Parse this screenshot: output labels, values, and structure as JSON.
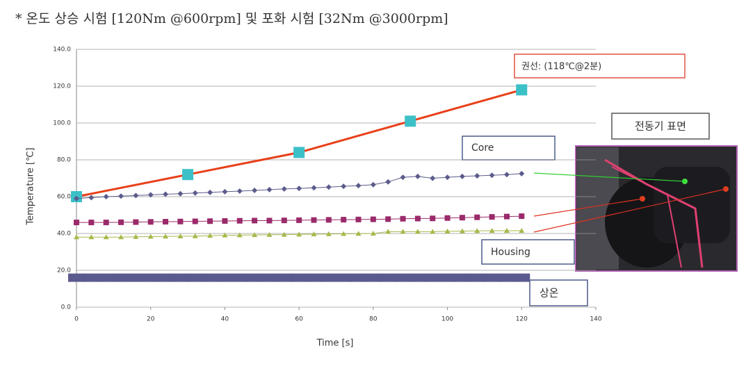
{
  "chart_data": {
    "type": "line",
    "title": "* 온도 상승 시험 [120Nm @600rpm] 및 포화 시험 [32Nm @3000rpm]",
    "xlabel": "Time [s]",
    "ylabel": "Temperature [℃]",
    "annotation": "전동기 표면",
    "xlim": [
      0,
      140
    ],
    "xticks": [
      0,
      20,
      40,
      60,
      80,
      100,
      120,
      140
    ],
    "ylim": [
      0,
      140
    ],
    "yticks": [
      {
        "value": 0,
        "label": "0.0"
      },
      {
        "value": 20,
        "label": "20.0"
      },
      {
        "value": 40,
        "label": "40.0"
      },
      {
        "value": 60,
        "label": "60.0"
      },
      {
        "value": 80,
        "label": "80.0"
      },
      {
        "value": 100,
        "label": "100.0"
      },
      {
        "value": 120,
        "label": "120.0"
      },
      {
        "value": 140,
        "label": "140.0"
      }
    ],
    "grid": true,
    "x": [
      0,
      4,
      8,
      12,
      16,
      20,
      24,
      28,
      32,
      36,
      40,
      44,
      48,
      52,
      56,
      60,
      64,
      68,
      72,
      76,
      80,
      84,
      88,
      92,
      96,
      100,
      104,
      108,
      112,
      116,
      120
    ],
    "series": [
      {
        "name": "권선: (118℃@2분)",
        "color": "#e8401a",
        "marker_color": "#3cc0c8",
        "marker": "square",
        "x": [
          0,
          30,
          60,
          90,
          120
        ],
        "values": [
          60,
          72,
          84,
          101,
          118
        ]
      },
      {
        "name": "Core",
        "color": "#5b5b8c",
        "marker": "diamond",
        "values": [
          59,
          59.5,
          60,
          60.3,
          60.6,
          61,
          61.3,
          61.6,
          62,
          62.3,
          62.7,
          63,
          63.4,
          63.8,
          64.2,
          64.5,
          64.8,
          65.2,
          65.6,
          66,
          66.5,
          68,
          70.5,
          71,
          70,
          70.5,
          71,
          71.3,
          71.6,
          72,
          72.5
        ]
      },
      {
        "color": "#9a2a6a",
        "marker": "square",
        "values": [
          46,
          46,
          46,
          46.1,
          46.2,
          46.3,
          46.4,
          46.5,
          46.6,
          46.7,
          46.8,
          46.9,
          47,
          47,
          47.1,
          47.2,
          47.3,
          47.4,
          47.5,
          47.6,
          47.7,
          47.8,
          48,
          48.1,
          48.2,
          48.4,
          48.6,
          48.8,
          49,
          49.2,
          49.4
        ]
      },
      {
        "name": "Housing",
        "color": "#a8b84a",
        "marker": "triangle",
        "values": [
          38,
          38,
          38,
          38,
          38.2,
          38.3,
          38.4,
          38.5,
          38.6,
          38.8,
          39,
          39.1,
          39.2,
          39.3,
          39.4,
          39.5,
          39.6,
          39.7,
          39.8,
          39.9,
          40,
          41,
          41,
          41,
          41,
          41.2,
          41.3,
          41.4,
          41.5,
          41.5,
          41.5
        ]
      },
      {
        "name": "상온",
        "color": "#5b5a8e",
        "marker": "wide",
        "values": [
          16,
          16,
          16,
          16,
          16,
          16,
          16,
          16,
          16,
          16,
          16,
          16,
          16,
          16,
          16,
          16,
          16,
          16,
          16,
          16,
          16,
          16,
          16,
          16,
          16,
          16,
          16,
          16,
          16,
          16,
          16
        ]
      }
    ]
  }
}
